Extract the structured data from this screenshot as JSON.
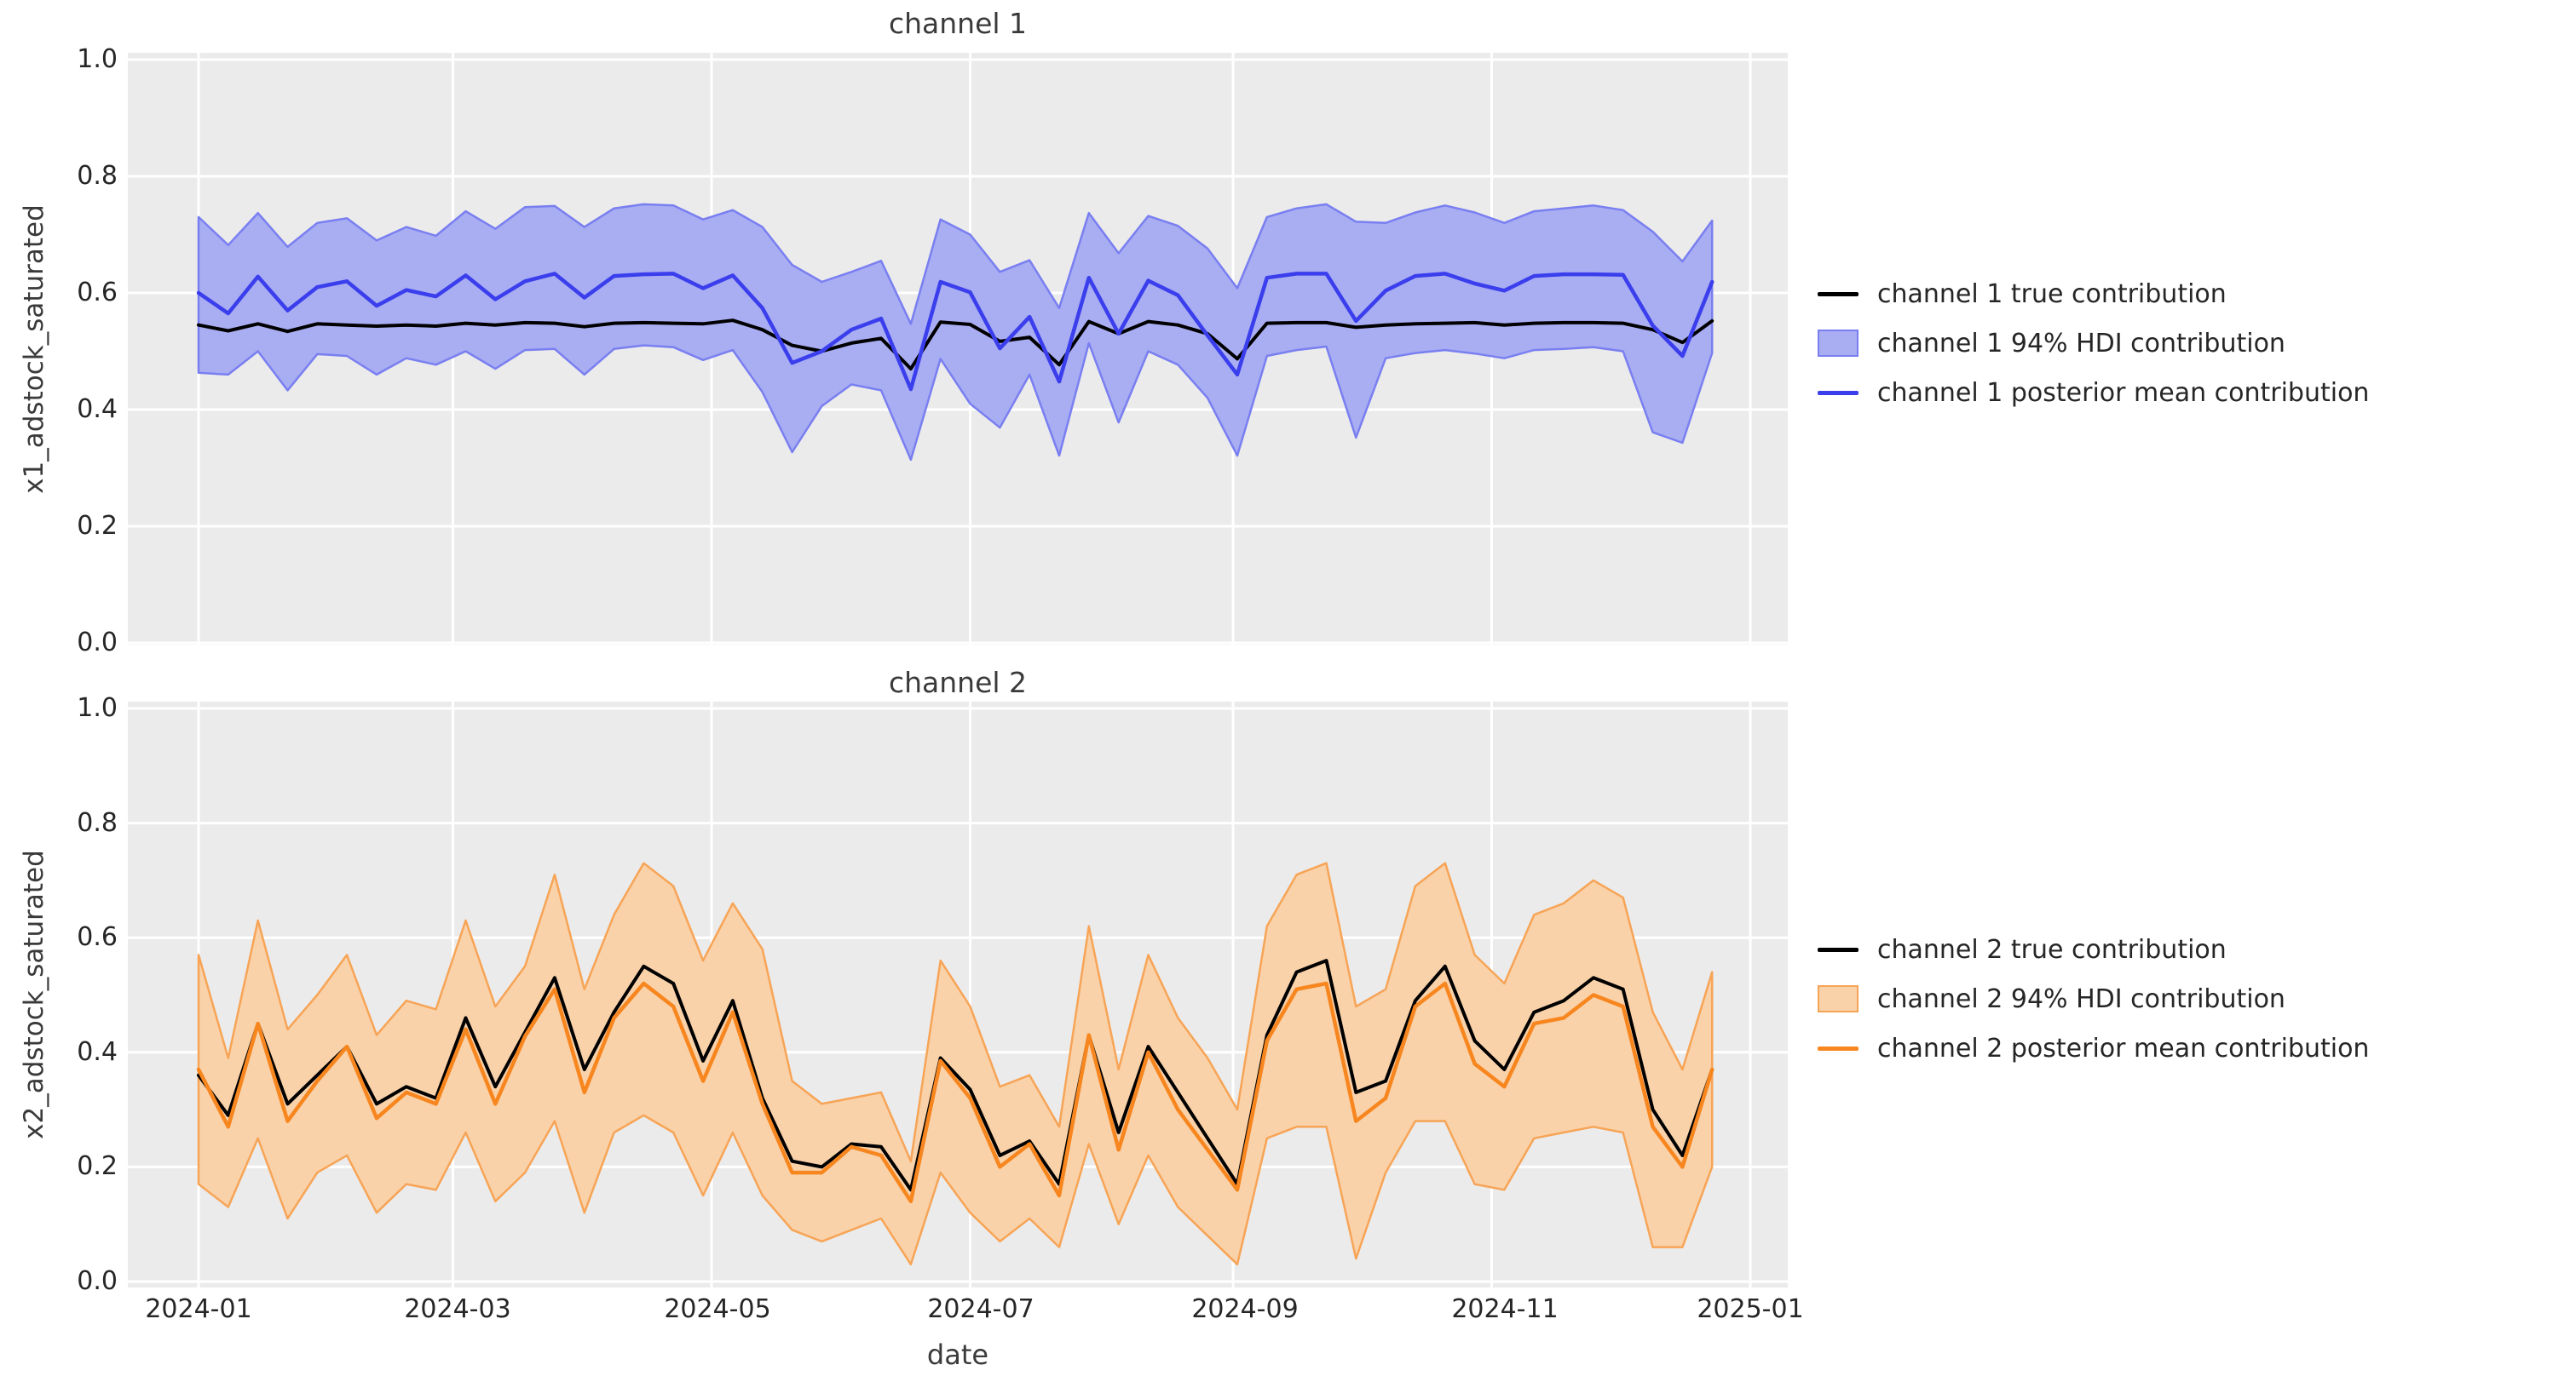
{
  "figure": {
    "background": "#ffffff",
    "axes_background": "#ebebeb",
    "grid_color": "#ffffff",
    "text_color": "#262626"
  },
  "x_axis": {
    "label": "date",
    "tick_labels": [
      "2024-01",
      "2024-03",
      "2024-05",
      "2024-07",
      "2024-09",
      "2024-11",
      "2025-01"
    ],
    "tick_dates": [
      "2024-01-01",
      "2024-03-01",
      "2024-05-01",
      "2024-07-01",
      "2024-09-01",
      "2024-11-01",
      "2025-01-01"
    ]
  },
  "chart_data": [
    {
      "type": "line",
      "title": "channel 1",
      "ylabel": "x1_adstock_saturated",
      "xlabel": "date",
      "ylim": [
        0.0,
        1.0
      ],
      "grid": true,
      "legend_position": "right-outside",
      "ytick_labels": [
        "1.0",
        "0.8",
        "0.6",
        "0.4",
        "0.2",
        "0.0"
      ],
      "ytick_values": [
        1.0,
        0.8,
        0.6,
        0.4,
        0.2,
        0.0
      ],
      "x": [
        "2024-01-01",
        "2024-01-08",
        "2024-01-15",
        "2024-01-22",
        "2024-01-29",
        "2024-02-05",
        "2024-02-12",
        "2024-02-19",
        "2024-02-26",
        "2024-03-04",
        "2024-03-11",
        "2024-03-18",
        "2024-03-25",
        "2024-04-01",
        "2024-04-08",
        "2024-04-15",
        "2024-04-22",
        "2024-04-29",
        "2024-05-06",
        "2024-05-13",
        "2024-05-20",
        "2024-05-27",
        "2024-06-03",
        "2024-06-10",
        "2024-06-17",
        "2024-06-24",
        "2024-07-01",
        "2024-07-08",
        "2024-07-15",
        "2024-07-22",
        "2024-07-29",
        "2024-08-05",
        "2024-08-12",
        "2024-08-19",
        "2024-08-26",
        "2024-09-02",
        "2024-09-09",
        "2024-09-16",
        "2024-09-23",
        "2024-09-30",
        "2024-10-07",
        "2024-10-14",
        "2024-10-21",
        "2024-10-28",
        "2024-11-04",
        "2024-11-11",
        "2024-11-18",
        "2024-11-25",
        "2024-12-02",
        "2024-12-09",
        "2024-12-16",
        "2024-12-23"
      ],
      "series": [
        {
          "name": "channel 1 true contribution",
          "color": "#000000",
          "values": [
            0.545,
            0.535,
            0.547,
            0.534,
            0.547,
            0.545,
            0.543,
            0.545,
            0.543,
            0.548,
            0.545,
            0.549,
            0.548,
            0.542,
            0.548,
            0.549,
            0.548,
            0.547,
            0.553,
            0.537,
            0.51,
            0.5,
            0.514,
            0.522,
            0.47,
            0.55,
            0.546,
            0.517,
            0.524,
            0.477,
            0.551,
            0.53,
            0.551,
            0.545,
            0.53,
            0.487,
            0.548,
            0.549,
            0.549,
            0.541,
            0.545,
            0.547,
            0.548,
            0.549,
            0.545,
            0.548,
            0.549,
            0.549,
            0.548,
            0.537,
            0.515,
            0.552
          ]
        },
        {
          "name": "channel 1 posterior mean contribution",
          "color": "#3a3eec",
          "values": [
            0.6,
            0.565,
            0.628,
            0.57,
            0.61,
            0.62,
            0.578,
            0.605,
            0.594,
            0.63,
            0.589,
            0.62,
            0.633,
            0.592,
            0.629,
            0.632,
            0.633,
            0.608,
            0.63,
            0.574,
            0.48,
            0.5,
            0.537,
            0.556,
            0.435,
            0.619,
            0.601,
            0.505,
            0.559,
            0.448,
            0.626,
            0.53,
            0.621,
            0.596,
            0.527,
            0.46,
            0.626,
            0.633,
            0.633,
            0.552,
            0.604,
            0.629,
            0.633,
            0.616,
            0.604,
            0.629,
            0.632,
            0.632,
            0.631,
            0.544,
            0.492,
            0.619
          ]
        }
      ],
      "band": {
        "name": "channel 1 94% HDI contribution",
        "fill": "#a9adf2",
        "edge": "#797ff0",
        "lower": [
          0.463,
          0.46,
          0.5,
          0.433,
          0.495,
          0.492,
          0.46,
          0.488,
          0.477,
          0.5,
          0.47,
          0.502,
          0.504,
          0.46,
          0.504,
          0.51,
          0.507,
          0.485,
          0.502,
          0.43,
          0.327,
          0.406,
          0.443,
          0.433,
          0.314,
          0.487,
          0.41,
          0.369,
          0.46,
          0.321,
          0.514,
          0.378,
          0.5,
          0.477,
          0.42,
          0.321,
          0.492,
          0.502,
          0.508,
          0.352,
          0.488,
          0.497,
          0.502,
          0.496,
          0.488,
          0.502,
          0.504,
          0.507,
          0.5,
          0.361,
          0.343,
          0.497
        ],
        "upper": [
          0.73,
          0.682,
          0.737,
          0.679,
          0.72,
          0.728,
          0.69,
          0.713,
          0.698,
          0.74,
          0.71,
          0.747,
          0.749,
          0.713,
          0.745,
          0.752,
          0.75,
          0.726,
          0.742,
          0.713,
          0.648,
          0.619,
          0.636,
          0.655,
          0.547,
          0.726,
          0.7,
          0.636,
          0.656,
          0.574,
          0.737,
          0.668,
          0.732,
          0.715,
          0.676,
          0.608,
          0.73,
          0.745,
          0.752,
          0.722,
          0.72,
          0.738,
          0.75,
          0.738,
          0.72,
          0.74,
          0.745,
          0.75,
          0.742,
          0.705,
          0.654,
          0.724
        ]
      }
    },
    {
      "type": "line",
      "title": "channel 2",
      "ylabel": "x2_adstock_saturated",
      "xlabel": "date",
      "ylim": [
        0.0,
        1.0
      ],
      "grid": true,
      "legend_position": "right-outside",
      "ytick_labels": [
        "1.0",
        "0.8",
        "0.6",
        "0.4",
        "0.2",
        "0.0"
      ],
      "ytick_values": [
        1.0,
        0.8,
        0.6,
        0.4,
        0.2,
        0.0
      ],
      "x": [
        "2024-01-01",
        "2024-01-08",
        "2024-01-15",
        "2024-01-22",
        "2024-01-29",
        "2024-02-05",
        "2024-02-12",
        "2024-02-19",
        "2024-02-26",
        "2024-03-04",
        "2024-03-11",
        "2024-03-18",
        "2024-03-25",
        "2024-04-01",
        "2024-04-08",
        "2024-04-15",
        "2024-04-22",
        "2024-04-29",
        "2024-05-06",
        "2024-05-13",
        "2024-05-20",
        "2024-05-27",
        "2024-06-03",
        "2024-06-10",
        "2024-06-17",
        "2024-06-24",
        "2024-07-01",
        "2024-07-08",
        "2024-07-15",
        "2024-07-22",
        "2024-07-29",
        "2024-08-05",
        "2024-08-12",
        "2024-08-19",
        "2024-08-26",
        "2024-09-02",
        "2024-09-09",
        "2024-09-16",
        "2024-09-23",
        "2024-09-30",
        "2024-10-07",
        "2024-10-14",
        "2024-10-21",
        "2024-10-28",
        "2024-11-04",
        "2024-11-11",
        "2024-11-18",
        "2024-11-25",
        "2024-12-02",
        "2024-12-09",
        "2024-12-16",
        "2024-12-23"
      ],
      "series": [
        {
          "name": "channel 2 true contribution",
          "color": "#000000",
          "values": [
            0.36,
            0.29,
            0.45,
            0.31,
            0.36,
            0.41,
            0.31,
            0.34,
            0.32,
            0.46,
            0.34,
            0.435,
            0.53,
            0.37,
            0.47,
            0.55,
            0.52,
            0.385,
            0.49,
            0.32,
            0.21,
            0.2,
            0.24,
            0.235,
            0.16,
            0.39,
            0.335,
            0.22,
            0.245,
            0.17,
            0.43,
            0.26,
            0.41,
            0.33,
            0.25,
            0.17,
            0.43,
            0.54,
            0.56,
            0.33,
            0.35,
            0.49,
            0.55,
            0.42,
            0.37,
            0.47,
            0.49,
            0.53,
            0.51,
            0.3,
            0.22,
            0.37
          ]
        },
        {
          "name": "channel 2 posterior mean contribution",
          "color": "#f8861f",
          "values": [
            0.37,
            0.27,
            0.45,
            0.28,
            0.35,
            0.41,
            0.285,
            0.33,
            0.31,
            0.44,
            0.31,
            0.428,
            0.51,
            0.33,
            0.46,
            0.52,
            0.48,
            0.35,
            0.47,
            0.31,
            0.19,
            0.19,
            0.235,
            0.22,
            0.14,
            0.385,
            0.32,
            0.2,
            0.24,
            0.15,
            0.43,
            0.23,
            0.4,
            0.3,
            0.23,
            0.16,
            0.42,
            0.51,
            0.52,
            0.28,
            0.32,
            0.48,
            0.52,
            0.38,
            0.34,
            0.45,
            0.46,
            0.5,
            0.48,
            0.27,
            0.2,
            0.37
          ]
        }
      ],
      "band": {
        "name": "channel 2 94% HDI contribution",
        "fill": "#f9d2aa",
        "edge": "#f7a456",
        "lower": [
          0.17,
          0.13,
          0.25,
          0.11,
          0.19,
          0.22,
          0.12,
          0.17,
          0.16,
          0.26,
          0.14,
          0.19,
          0.28,
          0.12,
          0.26,
          0.29,
          0.26,
          0.15,
          0.26,
          0.15,
          0.09,
          0.07,
          0.09,
          0.11,
          0.03,
          0.19,
          0.12,
          0.07,
          0.11,
          0.06,
          0.24,
          0.1,
          0.22,
          0.13,
          0.08,
          0.03,
          0.25,
          0.27,
          0.27,
          0.04,
          0.19,
          0.28,
          0.28,
          0.17,
          0.16,
          0.25,
          0.26,
          0.27,
          0.26,
          0.06,
          0.06,
          0.2
        ],
        "upper": [
          0.57,
          0.39,
          0.63,
          0.44,
          0.5,
          0.57,
          0.43,
          0.49,
          0.475,
          0.63,
          0.48,
          0.55,
          0.71,
          0.51,
          0.64,
          0.73,
          0.69,
          0.56,
          0.66,
          0.58,
          0.35,
          0.31,
          0.32,
          0.33,
          0.21,
          0.56,
          0.48,
          0.34,
          0.36,
          0.27,
          0.62,
          0.37,
          0.57,
          0.46,
          0.39,
          0.3,
          0.62,
          0.71,
          0.73,
          0.48,
          0.51,
          0.69,
          0.73,
          0.57,
          0.52,
          0.64,
          0.66,
          0.7,
          0.67,
          0.47,
          0.37,
          0.54
        ]
      }
    }
  ]
}
